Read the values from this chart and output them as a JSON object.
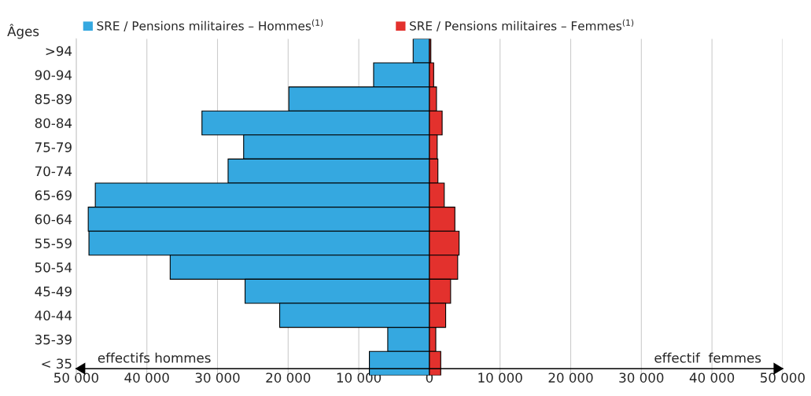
{
  "chart_data": {
    "type": "bar",
    "orientation": "horizontal",
    "stacked": true,
    "ylabel": "Âges",
    "categories": [
      ">94",
      "90-94",
      "85-89",
      "80-84",
      "75-79",
      "70-74",
      "65-69",
      "60-64",
      "55-59",
      "50-54",
      "45-49",
      "40-44",
      "35-39",
      "< 35"
    ],
    "series": [
      {
        "name": "SRE / Pensions militaires – Hommes$^{(1)}$",
        "color": "#35a8e0",
        "values": [
          -2300,
          -7900,
          -19900,
          -32200,
          -26300,
          -28500,
          -47300,
          -48300,
          -48200,
          -36700,
          -26100,
          -21200,
          -5900,
          -8500
        ]
      },
      {
        "name": "SRE / Pensions militaires – Femmes$^{(1)}$",
        "color": "#e3312d",
        "values": [
          200,
          600,
          1000,
          1800,
          1100,
          1200,
          2100,
          3600,
          4200,
          4000,
          3000,
          2300,
          900,
          1600
        ]
      }
    ],
    "xlim": [
      -50000,
      50000
    ],
    "xticks": [
      {
        "value": -50000,
        "label": "50 000"
      },
      {
        "value": -40000,
        "label": "40 000"
      },
      {
        "value": -30000,
        "label": "30 000"
      },
      {
        "value": -20000,
        "label": "20 000"
      },
      {
        "value": -10000,
        "label": "10 000"
      },
      0,
      {
        "value": 10000,
        "label": "10 000"
      },
      {
        "value": 20000,
        "label": "20 000"
      },
      {
        "value": 30000,
        "label": "30 000"
      },
      {
        "value": 40000,
        "label": "40 000"
      },
      {
        "value": 50000,
        "label": "50 000"
      }
    ],
    "annotations": [
      "effectifs hommes",
      "effectif  femmes"
    ],
    "grid": "x",
    "legend": "top"
  }
}
